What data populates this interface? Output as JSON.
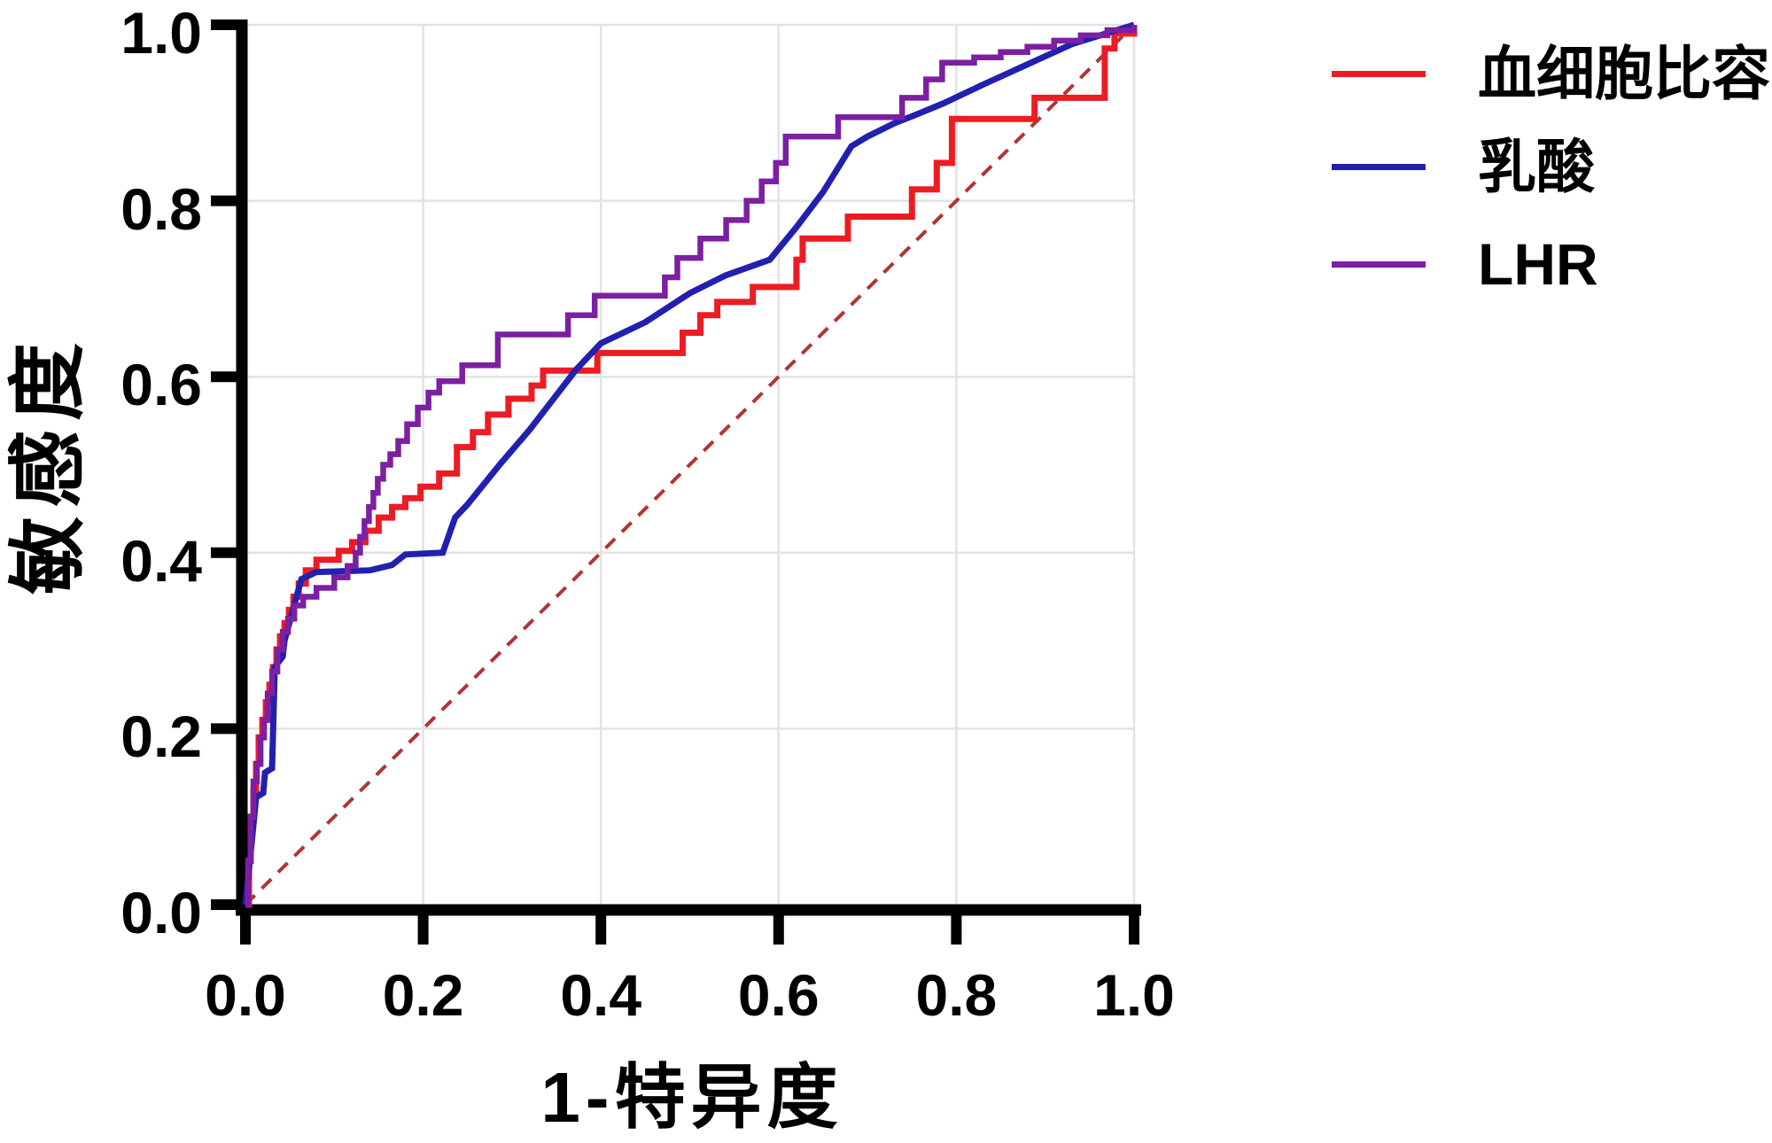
{
  "figure_title": "",
  "chart_data": {
    "type": "line",
    "subtype": "roc-curves",
    "title": "",
    "xlabel": "1-特异度",
    "ylabel": "敏感度",
    "xlim": [
      0.0,
      1.0
    ],
    "ylim": [
      0.0,
      1.0
    ],
    "grid": true,
    "x_ticks": [
      0.0,
      0.2,
      0.4,
      0.6,
      0.8,
      1.0
    ],
    "y_ticks": [
      0.0,
      0.2,
      0.4,
      0.6,
      0.8,
      1.0
    ],
    "x_tick_labels": [
      "0.0",
      "0.2",
      "0.4",
      "0.6",
      "0.8",
      "1.0"
    ],
    "y_tick_labels": [
      "0.0",
      "0.2",
      "0.4",
      "0.6",
      "0.8",
      "1.0"
    ],
    "legend_position": "right-top",
    "colors": {
      "grid": "#e3e3e3",
      "axis": "#000000",
      "reference": "#b23434",
      "background": "#ffffff"
    },
    "reference_line": {
      "name": "chance-diagonal",
      "style": "dashed",
      "color": "#b23434",
      "points": [
        [
          0,
          0
        ],
        [
          1,
          1
        ]
      ]
    },
    "series": [
      {
        "name": "血细胞比容",
        "color": "#ec1c24",
        "mode": "step",
        "line_width": 7,
        "points": [
          [
            0,
            0
          ],
          [
            0.004,
            0.05
          ],
          [
            0.006,
            0.1
          ],
          [
            0.009,
            0.13
          ],
          [
            0.012,
            0.16
          ],
          [
            0.015,
            0.19
          ],
          [
            0.019,
            0.21
          ],
          [
            0.023,
            0.23
          ],
          [
            0.027,
            0.25
          ],
          [
            0.031,
            0.27
          ],
          [
            0.035,
            0.29
          ],
          [
            0.039,
            0.305
          ],
          [
            0.044,
            0.32
          ],
          [
            0.049,
            0.335
          ],
          [
            0.054,
            0.35
          ],
          [
            0.06,
            0.365
          ],
          [
            0.068,
            0.38
          ],
          [
            0.08,
            0.392
          ],
          [
            0.105,
            0.402
          ],
          [
            0.12,
            0.412
          ],
          [
            0.135,
            0.425
          ],
          [
            0.15,
            0.44
          ],
          [
            0.165,
            0.452
          ],
          [
            0.18,
            0.462
          ],
          [
            0.197,
            0.475
          ],
          [
            0.218,
            0.49
          ],
          [
            0.238,
            0.52
          ],
          [
            0.256,
            0.537
          ],
          [
            0.273,
            0.557
          ],
          [
            0.296,
            0.575
          ],
          [
            0.322,
            0.59
          ],
          [
            0.335,
            0.607
          ],
          [
            0.396,
            0.627
          ],
          [
            0.492,
            0.65
          ],
          [
            0.512,
            0.67
          ],
          [
            0.531,
            0.685
          ],
          [
            0.571,
            0.702
          ],
          [
            0.62,
            0.733
          ],
          [
            0.627,
            0.757
          ],
          [
            0.678,
            0.782
          ],
          [
            0.75,
            0.813
          ],
          [
            0.778,
            0.843
          ],
          [
            0.795,
            0.893
          ],
          [
            0.888,
            0.917
          ],
          [
            0.967,
            0.973
          ],
          [
            0.978,
            0.99
          ],
          [
            1,
            1
          ]
        ]
      },
      {
        "name": "乳酸",
        "color": "#2120af",
        "mode": "linear",
        "line_width": 7,
        "points": [
          [
            0,
            0
          ],
          [
            0.005,
            0.05
          ],
          [
            0.01,
            0.1
          ],
          [
            0.012,
            0.122
          ],
          [
            0.02,
            0.127
          ],
          [
            0.022,
            0.15
          ],
          [
            0.03,
            0.155
          ],
          [
            0.033,
            0.27
          ],
          [
            0.042,
            0.282
          ],
          [
            0.044,
            0.3
          ],
          [
            0.048,
            0.315
          ],
          [
            0.053,
            0.333
          ],
          [
            0.058,
            0.352
          ],
          [
            0.063,
            0.37
          ],
          [
            0.08,
            0.378
          ],
          [
            0.14,
            0.38
          ],
          [
            0.165,
            0.386
          ],
          [
            0.18,
            0.398
          ],
          [
            0.222,
            0.4
          ],
          [
            0.236,
            0.44
          ],
          [
            0.25,
            0.455
          ],
          [
            0.286,
            0.5
          ],
          [
            0.32,
            0.54
          ],
          [
            0.372,
            0.608
          ],
          [
            0.4,
            0.638
          ],
          [
            0.45,
            0.662
          ],
          [
            0.5,
            0.695
          ],
          [
            0.54,
            0.715
          ],
          [
            0.59,
            0.733
          ],
          [
            0.62,
            0.77
          ],
          [
            0.65,
            0.81
          ],
          [
            0.682,
            0.862
          ],
          [
            0.7,
            0.873
          ],
          [
            0.73,
            0.888
          ],
          [
            0.755,
            0.898
          ],
          [
            0.786,
            0.911
          ],
          [
            0.83,
            0.932
          ],
          [
            0.88,
            0.955
          ],
          [
            0.93,
            0.978
          ],
          [
            1,
            1
          ]
        ]
      },
      {
        "name": "LHR",
        "color": "#7c1fa2",
        "mode": "step",
        "line_width": 6.5,
        "points": [
          [
            0,
            0
          ],
          [
            0.003,
            0.05
          ],
          [
            0.006,
            0.1
          ],
          [
            0.009,
            0.14
          ],
          [
            0.013,
            0.16
          ],
          [
            0.017,
            0.19
          ],
          [
            0.021,
            0.21
          ],
          [
            0.025,
            0.24
          ],
          [
            0.03,
            0.265
          ],
          [
            0.036,
            0.29
          ],
          [
            0.042,
            0.31
          ],
          [
            0.048,
            0.325
          ],
          [
            0.055,
            0.34
          ],
          [
            0.065,
            0.35
          ],
          [
            0.08,
            0.36
          ],
          [
            0.1,
            0.372
          ],
          [
            0.115,
            0.385
          ],
          [
            0.124,
            0.4
          ],
          [
            0.129,
            0.418
          ],
          [
            0.134,
            0.436
          ],
          [
            0.139,
            0.452
          ],
          [
            0.144,
            0.468
          ],
          [
            0.149,
            0.484
          ],
          [
            0.155,
            0.5
          ],
          [
            0.163,
            0.512
          ],
          [
            0.172,
            0.527
          ],
          [
            0.182,
            0.546
          ],
          [
            0.194,
            0.565
          ],
          [
            0.206,
            0.582
          ],
          [
            0.218,
            0.595
          ],
          [
            0.244,
            0.613
          ],
          [
            0.284,
            0.648
          ],
          [
            0.363,
            0.67
          ],
          [
            0.393,
            0.692
          ],
          [
            0.472,
            0.713
          ],
          [
            0.486,
            0.735
          ],
          [
            0.512,
            0.757
          ],
          [
            0.541,
            0.778
          ],
          [
            0.564,
            0.8
          ],
          [
            0.581,
            0.822
          ],
          [
            0.597,
            0.843
          ],
          [
            0.608,
            0.873
          ],
          [
            0.667,
            0.895
          ],
          [
            0.739,
            0.917
          ],
          [
            0.766,
            0.938
          ],
          [
            0.784,
            0.957
          ],
          [
            0.82,
            0.963
          ],
          [
            0.85,
            0.969
          ],
          [
            0.88,
            0.975
          ],
          [
            0.91,
            0.982
          ],
          [
            0.94,
            0.988
          ],
          [
            0.97,
            0.994
          ],
          [
            1,
            1
          ]
        ]
      }
    ]
  },
  "legend": {
    "entries": [
      {
        "label": "血细胞比容",
        "color": "#ec1c24"
      },
      {
        "label": "乳酸",
        "color": "#2120af"
      },
      {
        "label": "LHR",
        "color": "#7c1fa2"
      }
    ]
  }
}
